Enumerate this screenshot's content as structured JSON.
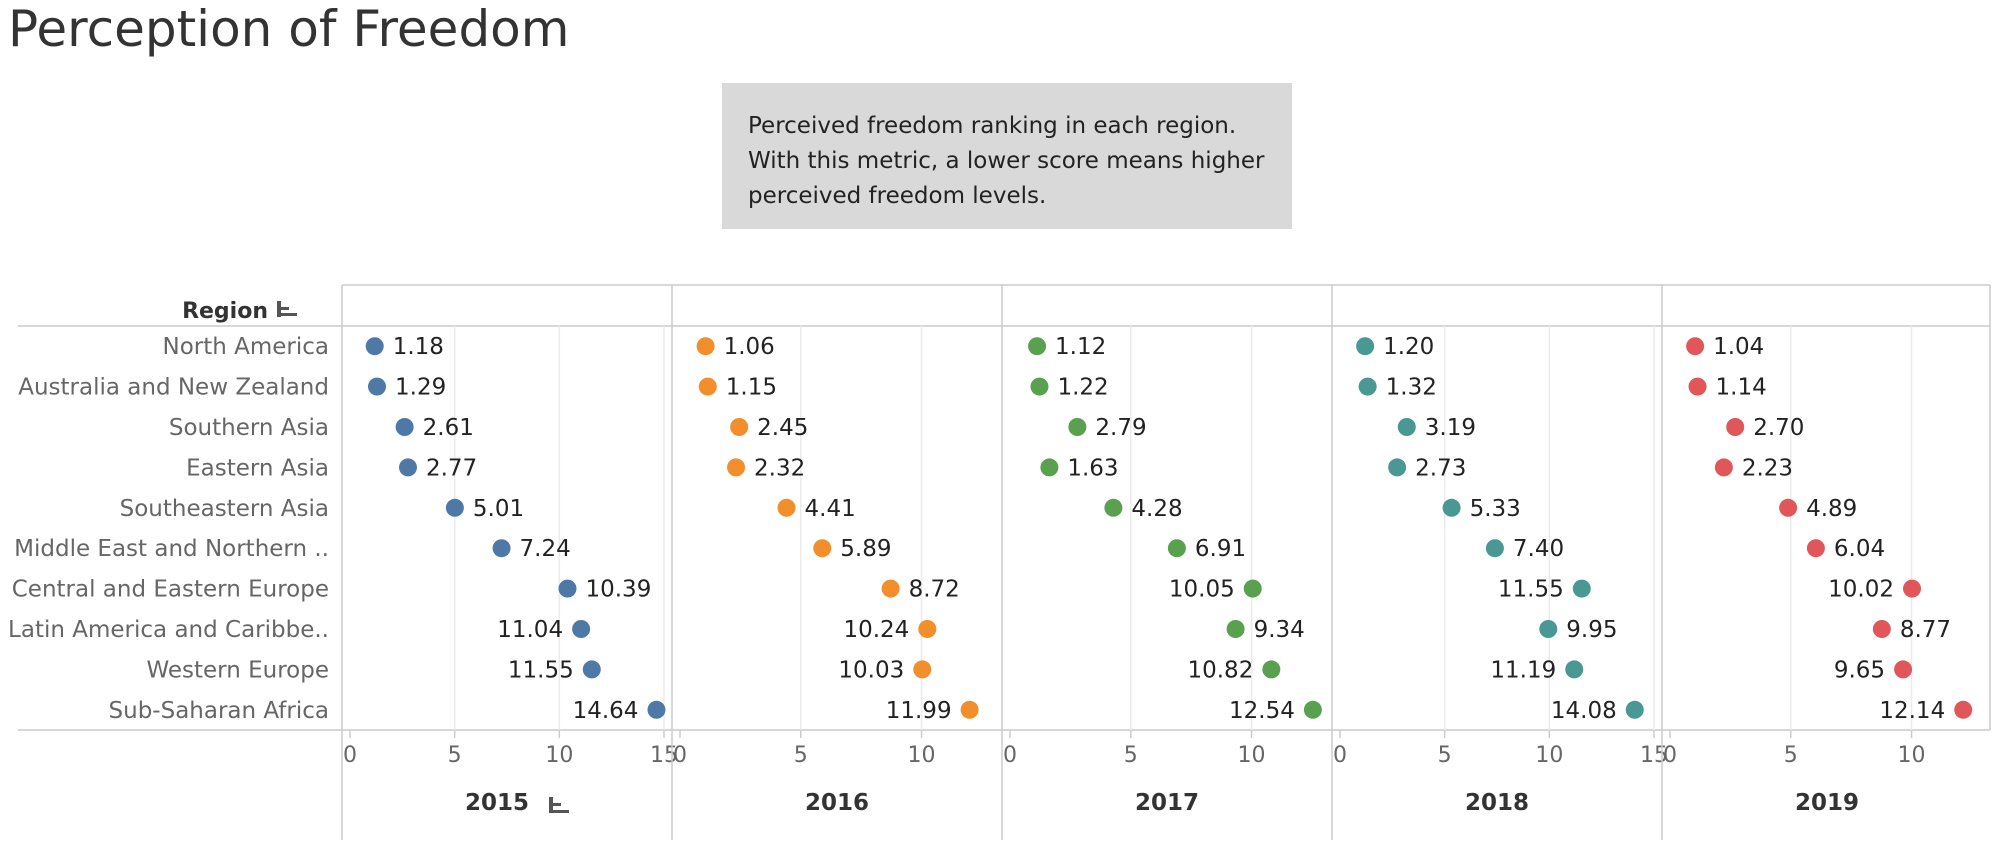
{
  "title": "Perception of Freedom",
  "note": {
    "line1": "Perceived freedom ranking in each region.",
    "line2": "With this metric, a lower score means higher",
    "line3": "perceived freedom levels."
  },
  "chart_data": {
    "type": "scatter",
    "row_header": "Region",
    "regions": [
      "North America",
      "Australia and New Zealand",
      "Southern Asia",
      "Eastern Asia",
      "Southeastern Asia",
      "Middle East and Northern ..",
      "Central and Eastern Europe",
      "Latin America and Caribbe..",
      "Western Europe",
      "Sub-Saharan Africa"
    ],
    "series": [
      {
        "name": "2015",
        "color": "#4e79a7",
        "xlim": [
          0,
          15
        ],
        "ticks": [
          0,
          5,
          10,
          15
        ],
        "values": [
          1.18,
          1.29,
          2.61,
          2.77,
          5.01,
          7.24,
          10.39,
          11.04,
          11.55,
          14.64
        ],
        "labels": [
          "1.18",
          "1.29",
          "2.61",
          "2.77",
          "5.01",
          "7.24",
          "10.39",
          "11.04",
          "11.55",
          "14.64"
        ]
      },
      {
        "name": "2016",
        "color": "#f28e2b",
        "xlim": [
          0,
          13
        ],
        "ticks": [
          0,
          5,
          10
        ],
        "values": [
          1.06,
          1.15,
          2.45,
          2.32,
          4.41,
          5.89,
          8.72,
          10.24,
          10.03,
          11.99
        ],
        "labels": [
          "1.06",
          "1.15",
          "2.45",
          "2.32",
          "4.41",
          "5.89",
          "8.72",
          "10.24",
          "10.03",
          "11.99"
        ]
      },
      {
        "name": "2017",
        "color": "#59a14f",
        "xlim": [
          0,
          13
        ],
        "ticks": [
          0,
          5,
          10
        ],
        "values": [
          1.12,
          1.22,
          2.79,
          1.63,
          4.28,
          6.91,
          10.05,
          9.34,
          10.82,
          12.54
        ],
        "labels": [
          "1.12",
          "1.22",
          "2.79",
          "1.63",
          "4.28",
          "6.91",
          "10.05",
          "9.34",
          "10.82",
          "12.54"
        ]
      },
      {
        "name": "2018",
        "color": "#499894",
        "xlim": [
          0,
          15
        ],
        "ticks": [
          0,
          5,
          10,
          15
        ],
        "values": [
          1.2,
          1.32,
          3.19,
          2.73,
          5.33,
          7.4,
          11.55,
          9.95,
          11.19,
          14.08
        ],
        "labels": [
          "1.20",
          "1.32",
          "3.19",
          "2.73",
          "5.33",
          "7.40",
          "11.55",
          "9.95",
          "11.19",
          "14.08"
        ]
      },
      {
        "name": "2019",
        "color": "#e15759",
        "xlim": [
          0,
          13
        ],
        "ticks": [
          0,
          5,
          10
        ],
        "values": [
          1.04,
          1.14,
          2.7,
          2.23,
          4.89,
          6.04,
          10.02,
          8.77,
          9.65,
          12.14
        ],
        "labels": [
          "1.04",
          "1.14",
          "2.70",
          "2.23",
          "4.89",
          "6.04",
          "10.02",
          "8.77",
          "9.65",
          "12.14"
        ]
      }
    ],
    "grid": true,
    "colors": {
      "axis": "#cccccc",
      "grid": "#ebebeb",
      "text": "#333333",
      "tick_text": "#666666"
    }
  }
}
